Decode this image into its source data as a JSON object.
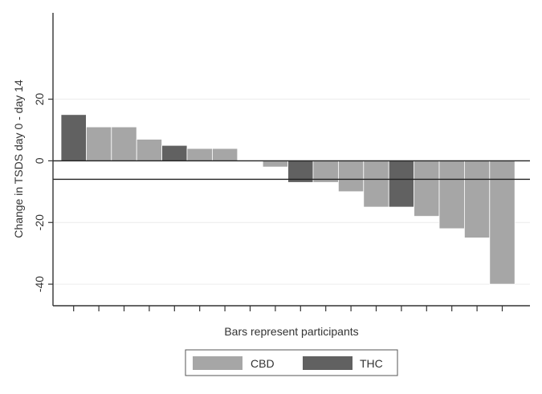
{
  "chart_data": {
    "type": "bar",
    "title": "",
    "xlabel": "Bars represent participants",
    "ylabel": "Change in TSDS day 0 - day 14",
    "ylim": [
      -47,
      48
    ],
    "y_ticks": [
      20,
      0,
      -20,
      -40
    ],
    "y_tick_labels": [
      "20",
      "0",
      "-20",
      "-40"
    ],
    "grid": true,
    "reference_lines": [
      0,
      -6
    ],
    "legend_position": "bottom",
    "legend": [
      {
        "name": "CBD",
        "color": "#a6a6a6"
      },
      {
        "name": "THC",
        "color": "#616161"
      }
    ],
    "bars": [
      {
        "group": "THC",
        "value": 15
      },
      {
        "group": "CBD",
        "value": 11
      },
      {
        "group": "CBD",
        "value": 11
      },
      {
        "group": "CBD",
        "value": 7
      },
      {
        "group": "THC",
        "value": 5
      },
      {
        "group": "CBD",
        "value": 4
      },
      {
        "group": "CBD",
        "value": 4
      },
      {
        "group": "CBD",
        "value": 0
      },
      {
        "group": "CBD",
        "value": -2
      },
      {
        "group": "THC",
        "value": -7
      },
      {
        "group": "CBD",
        "value": -7
      },
      {
        "group": "CBD",
        "value": -10
      },
      {
        "group": "CBD",
        "value": -15
      },
      {
        "group": "THC",
        "value": -15
      },
      {
        "group": "CBD",
        "value": -18
      },
      {
        "group": "CBD",
        "value": -22
      },
      {
        "group": "CBD",
        "value": -25
      },
      {
        "group": "CBD",
        "value": -40
      }
    ]
  }
}
